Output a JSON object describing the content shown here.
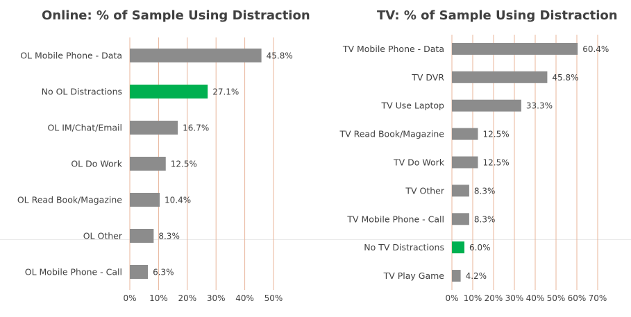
{
  "chart_data": [
    {
      "type": "bar",
      "orientation": "horizontal",
      "title": "Online: % of Sample Using Distraction",
      "categories": [
        "OL Mobile Phone - Data",
        "No OL Distractions",
        "OL IM/Chat/Email",
        "OL Do Work",
        "OL Read Book/Magazine",
        "OL Other",
        "OL Mobile Phone - Call"
      ],
      "values": [
        45.8,
        27.1,
        16.7,
        12.5,
        10.4,
        8.3,
        6.3
      ],
      "value_labels": [
        "45.8%",
        "27.1%",
        "16.7%",
        "12.5%",
        "10.4%",
        "8.3%",
        "6.3%"
      ],
      "highlight_index": 1,
      "xlim": [
        0,
        50
      ],
      "xticks": [
        "0%",
        "10%",
        "20%",
        "30%",
        "40%",
        "50%"
      ],
      "grid": true
    },
    {
      "type": "bar",
      "orientation": "horizontal",
      "title": "TV: % of Sample Using Distraction",
      "categories": [
        "TV Mobile Phone - Data",
        "TV DVR",
        "TV Use Laptop",
        "TV Read Book/Magazine",
        "TV Do Work",
        "TV Other",
        "TV Mobile Phone - Call",
        "No TV Distractions",
        "TV Play Game"
      ],
      "values": [
        60.4,
        45.8,
        33.3,
        12.5,
        12.5,
        8.3,
        8.3,
        6.0,
        4.2
      ],
      "value_labels": [
        "60.4%",
        "45.8%",
        "33.3%",
        "12.5%",
        "12.5%",
        "8.3%",
        "8.3%",
        "6.0%",
        "4.2%"
      ],
      "highlight_index": 7,
      "xlim": [
        0,
        70
      ],
      "xticks": [
        "0%",
        "10%",
        "20%",
        "30%",
        "40%",
        "50%",
        "60%",
        "70%"
      ],
      "grid": true
    }
  ],
  "colors": {
    "bar": "#8c8c8c",
    "highlight": "#00b050",
    "grid": "#e8b49a",
    "text": "#404040"
  }
}
